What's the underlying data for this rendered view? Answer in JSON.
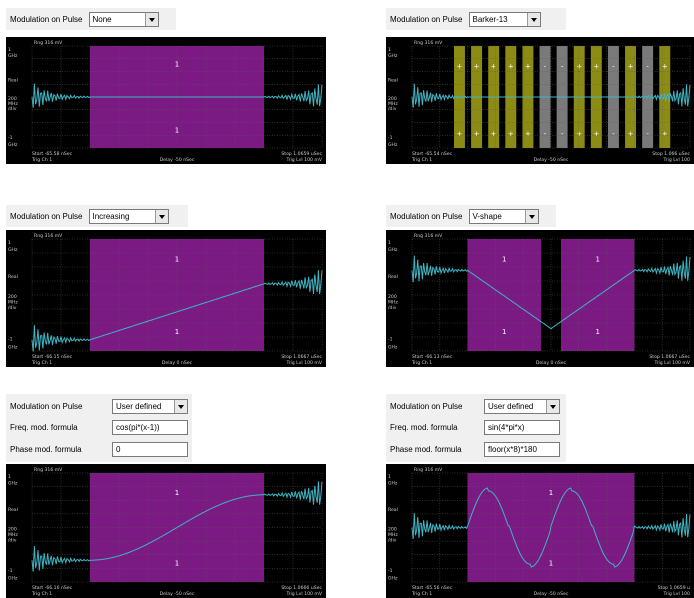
{
  "controls": {
    "mod_label": "Modulation on Pulse",
    "freq_label": "Freq. mod. formula",
    "phase_label": "Phase mod. formula"
  },
  "scope_common": {
    "range": "Rng 316 mV",
    "y_labels": [
      "1",
      "GHz",
      "Real",
      "200",
      "MHz",
      "/div",
      "-1",
      "GHz"
    ],
    "trig_ch": "Trig Ch 1",
    "colors": {
      "screen": "#000000",
      "pulse_magenta": "#7a1a82",
      "pulse_olive": "#8c8c14",
      "trace": "#3fb5c4",
      "grid": "#5a5a5a"
    }
  },
  "panels": [
    {
      "id": "none",
      "mod_value": "None",
      "start": "Start -65.58 nSec",
      "delay": "Delay -50 nSec",
      "stop": "Stop 1.0659 uSec",
      "trig_lvl": "Trig Lvl 100 mV",
      "top_marker": "1",
      "bottom_marker": "1"
    },
    {
      "id": "barker",
      "mod_value": "Barker-13",
      "start": "Start -65.54 nSec",
      "delay": "Delay -50 nSec",
      "stop": "Stop 1.066 uSec",
      "trig_lvl": "Trig Lvl 100",
      "barker_signs": [
        "+",
        "+",
        "+",
        "+",
        "+",
        "-",
        "-",
        "+",
        "+",
        "-",
        "+",
        "-",
        "+"
      ]
    },
    {
      "id": "increasing",
      "mod_value": "Increasing",
      "start": "Start -66.15 nSec",
      "delay": "Delay 0 nSec",
      "stop": "Stop 1.0667 uSec",
      "trig_lvl": "Trig Lvl 100 mV",
      "top_marker": "1",
      "bottom_marker": "1"
    },
    {
      "id": "vshape",
      "mod_value": "V-shape",
      "start": "Start -66.13 nSec",
      "delay": "Delay 0 nSec",
      "stop": "Stop 1.0667 uSec",
      "trig_lvl": "Trig Lvl 100 mV",
      "top_marker": "1",
      "bottom_marker": "1"
    },
    {
      "id": "user1",
      "mod_value": "User defined",
      "freq_formula": "cos(pi*(x-1))",
      "phase_formula": "0",
      "start": "Start -66.16 nSec",
      "delay": "Delay -50 nSec",
      "stop": "Stop 1.0666 uSec",
      "trig_lvl": "Trig Lvl 100 mV",
      "top_marker": "1",
      "bottom_marker": "1"
    },
    {
      "id": "user2",
      "mod_value": "User defined",
      "freq_formula": "sin(4*pi*x)",
      "phase_formula": "floor(x*8)*180",
      "start": "Start -65.56 nSec",
      "delay": "Delay -50 nSec",
      "stop": "Stop 1.0659 u",
      "trig_lvl": "Trig Lvl 100",
      "top_marker": "1",
      "bottom_marker": "1"
    }
  ]
}
